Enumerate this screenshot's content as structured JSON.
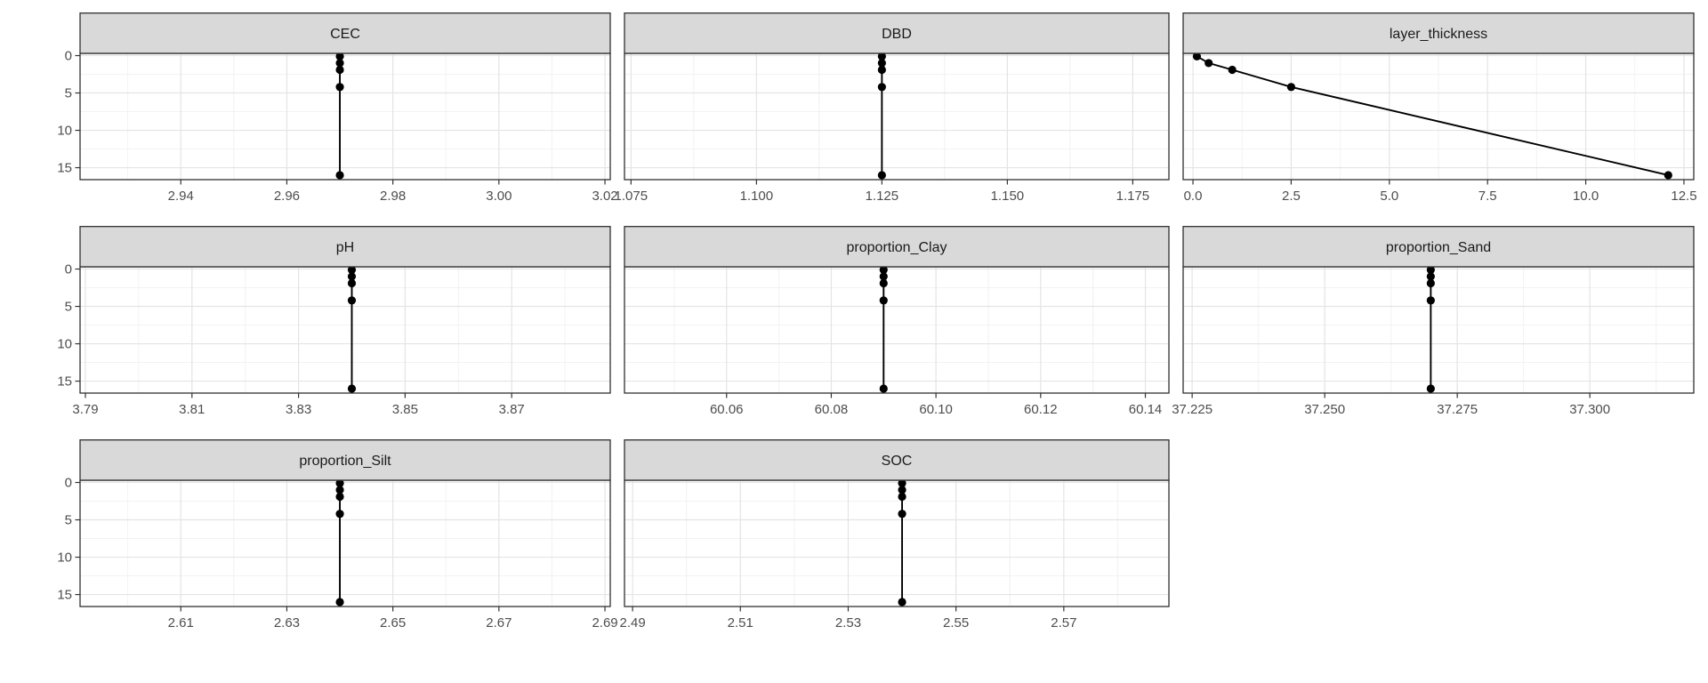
{
  "figure": {
    "kind": "faceted depth-profile plot (ggplot-style facet_wrap with free x scales)",
    "background": "#ffffff",
    "axis_titles": {
      "x": "",
      "y": ""
    }
  },
  "chart_data": {
    "type": "line",
    "title": "",
    "legend": "none",
    "grid": "on (light gray major and minor gridlines, white panels)",
    "y_axis": {
      "direction": "depth increasing downward",
      "tick_labels": [
        "0",
        "5",
        "10",
        "15"
      ],
      "tick_values": [
        0,
        5,
        10,
        15
      ],
      "minor_values": [
        2.5,
        7.5,
        12.5
      ],
      "range": [
        -0.3,
        16.6
      ],
      "shown_only_on_first_column": true
    },
    "depths": [
      0.1,
      1.0,
      1.9,
      4.2,
      16.0
    ],
    "facets": [
      {
        "label": "CEC",
        "tick_labels": [
          "2.94",
          "2.96",
          "2.98",
          "3.00",
          "3.02"
        ],
        "tick_values": [
          2.94,
          2.96,
          2.98,
          3.0,
          3.02
        ],
        "xlim": [
          2.921,
          3.021
        ],
        "values": [
          2.97,
          2.97,
          2.97,
          2.97,
          2.97
        ]
      },
      {
        "label": "DBD",
        "tick_labels": [
          "1.075",
          "1.100",
          "1.125",
          "1.150",
          "1.175"
        ],
        "tick_values": [
          1.075,
          1.1,
          1.125,
          1.15,
          1.175
        ],
        "xlim": [
          1.0737,
          1.1822
        ],
        "values": [
          1.125,
          1.125,
          1.125,
          1.125,
          1.125
        ]
      },
      {
        "label": "layer_thickness",
        "tick_labels": [
          "0.0",
          "2.5",
          "5.0",
          "7.5",
          "10.0",
          "12.5"
        ],
        "tick_values": [
          0,
          2.5,
          5,
          7.5,
          10,
          12.5
        ],
        "xlim": [
          -0.25,
          12.75
        ],
        "values": [
          0.1,
          0.4,
          1.0,
          2.5,
          12.1
        ]
      },
      {
        "label": "pH",
        "tick_labels": [
          "3.79",
          "3.81",
          "3.83",
          "3.85",
          "3.87"
        ],
        "tick_values": [
          3.79,
          3.81,
          3.83,
          3.85,
          3.87
        ],
        "xlim": [
          3.789,
          3.8885
        ],
        "values": [
          3.84,
          3.84,
          3.84,
          3.84,
          3.84
        ]
      },
      {
        "label": "proportion_Clay",
        "tick_labels": [
          "60.06",
          "60.08",
          "60.10",
          "60.12",
          "60.14"
        ],
        "tick_values": [
          60.06,
          60.08,
          60.1,
          60.12,
          60.14
        ],
        "xlim": [
          60.0405,
          60.1445
        ],
        "values": [
          60.09,
          60.09,
          60.09,
          60.09,
          60.09
        ]
      },
      {
        "label": "proportion_Sand",
        "tick_labels": [
          "37.225",
          "37.250",
          "37.275",
          "37.300"
        ],
        "tick_values": [
          37.225,
          37.25,
          37.275,
          37.3
        ],
        "xlim": [
          37.2233,
          37.3196
        ],
        "values": [
          37.27,
          37.27,
          37.27,
          37.27,
          37.27
        ]
      },
      {
        "label": "proportion_Silt",
        "tick_labels": [
          "2.61",
          "2.63",
          "2.65",
          "2.67",
          "2.69"
        ],
        "tick_values": [
          2.61,
          2.63,
          2.65,
          2.67,
          2.69
        ],
        "xlim": [
          2.591,
          2.691
        ],
        "values": [
          2.64,
          2.64,
          2.64,
          2.64,
          2.64
        ]
      },
      {
        "label": "SOC",
        "tick_labels": [
          "2.49",
          "2.51",
          "2.53",
          "2.55",
          "2.57"
        ],
        "tick_values": [
          2.49,
          2.51,
          2.53,
          2.55,
          2.57
        ],
        "xlim": [
          2.4885,
          2.5895
        ],
        "values": [
          2.54,
          2.54,
          2.54,
          2.54,
          2.54
        ]
      }
    ]
  },
  "style": {
    "strip_bg": "#d9d9d9",
    "strip_text_color": "#1a1a1a",
    "panel_border": "#2f2f2f",
    "grid_major": "#e4e4e4",
    "grid_minor": "#f2f2f2",
    "tick_mark_color": "#333333",
    "axis_text_color": "#4d4d4d",
    "data_color": "#000000",
    "point_radius": 4.6,
    "line_width": 1.9
  }
}
